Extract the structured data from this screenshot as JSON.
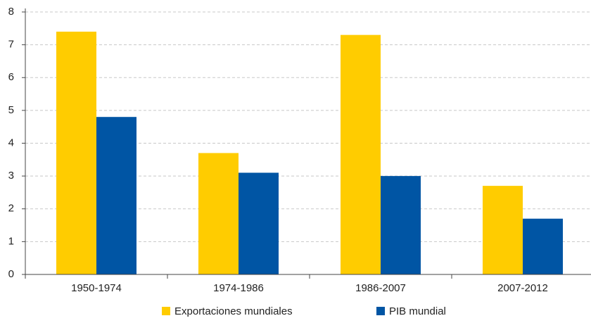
{
  "chart_data": {
    "type": "bar",
    "categories": [
      "1950-1974",
      "1974-1986",
      "1986-2007",
      "2007-2012"
    ],
    "series": [
      {
        "name": "Exportaciones mundiales",
        "color": "#ffcc00",
        "values": [
          7.4,
          3.7,
          7.3,
          2.7
        ]
      },
      {
        "name": "PIB mundial",
        "color": "#0055a4",
        "values": [
          4.8,
          3.1,
          3.0,
          1.7
        ]
      }
    ],
    "ylim": [
      0,
      8
    ],
    "yticks": [
      0,
      1,
      2,
      3,
      4,
      5,
      6,
      7,
      8
    ],
    "grid": true,
    "legend": "bottom"
  }
}
